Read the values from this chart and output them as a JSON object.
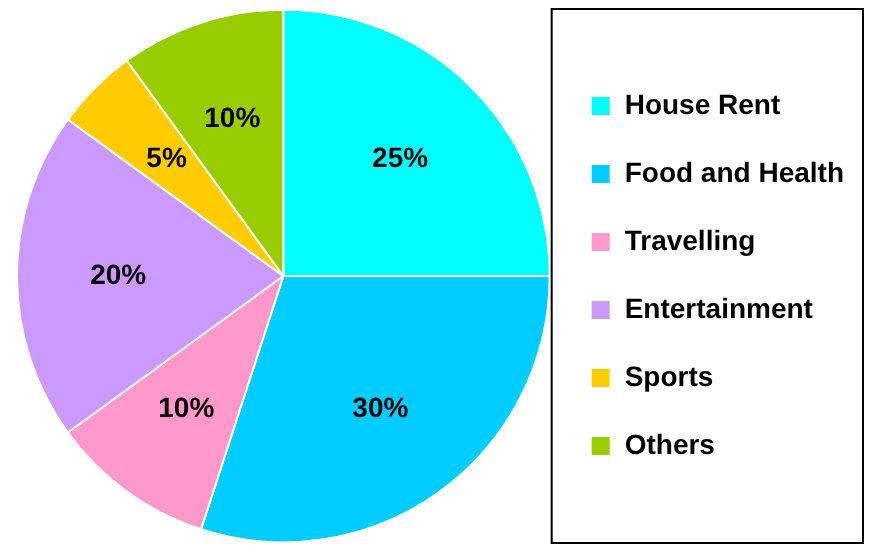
{
  "chart_data": {
    "type": "pie",
    "categories": [
      "House Rent",
      "Food and Health",
      "Travelling",
      "Entertainment",
      "Sports",
      "Others"
    ],
    "values": [
      25,
      30,
      10,
      20,
      5,
      10
    ],
    "colors": [
      "#00ffff",
      "#00ccff",
      "#ff99cc",
      "#cc99ff",
      "#ffcc00",
      "#99cc00"
    ],
    "value_labels": [
      "25%",
      "30%",
      "10%",
      "20%",
      "5%",
      "10%"
    ],
    "legend": "right"
  }
}
